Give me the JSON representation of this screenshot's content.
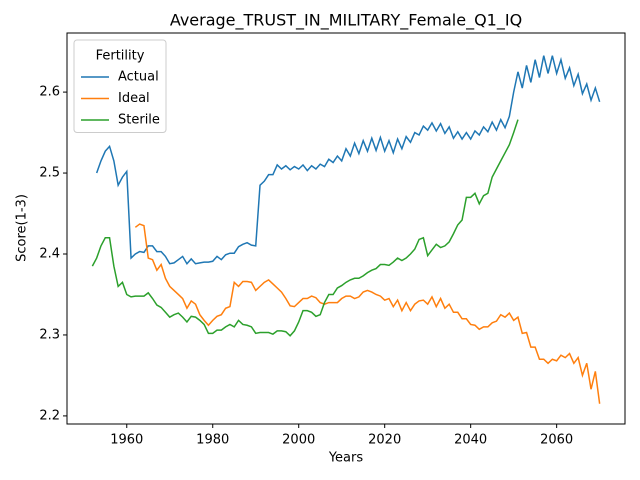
{
  "chart_data": {
    "type": "line",
    "title": "Average_TRUST_IN_MILITARY_Female_Q1_IQ",
    "x_label": "Years",
    "y_label": "Score(1-3)",
    "legend_title": "Fertility",
    "legend_position": "upper left",
    "grid": false,
    "xlim": [
      1946.1,
      2075.9
    ],
    "ylim": [
      2.19,
      2.673
    ],
    "xticks": [
      1960,
      1980,
      2000,
      2020,
      2040,
      2060
    ],
    "yticks": [
      2.2,
      2.3,
      2.4,
      2.5,
      2.6
    ],
    "x": [
      1952,
      1953,
      1954,
      1955,
      1956,
      1957,
      1958,
      1959,
      1960,
      1961,
      1962,
      1963,
      1964,
      1965,
      1966,
      1967,
      1968,
      1969,
      1970,
      1971,
      1972,
      1973,
      1974,
      1975,
      1976,
      1977,
      1978,
      1979,
      1980,
      1981,
      1982,
      1983,
      1984,
      1985,
      1986,
      1987,
      1988,
      1989,
      1990,
      1991,
      1992,
      1993,
      1994,
      1995,
      1996,
      1997,
      1998,
      1999,
      2000,
      2001,
      2002,
      2003,
      2004,
      2005,
      2006,
      2007,
      2008,
      2009,
      2010,
      2011,
      2012,
      2013,
      2014,
      2015,
      2016,
      2017,
      2018,
      2019,
      2020,
      2021,
      2022,
      2023,
      2024,
      2025,
      2026,
      2027,
      2028,
      2029,
      2030,
      2031,
      2032,
      2033,
      2034,
      2035,
      2036,
      2037,
      2038,
      2039,
      2040,
      2041,
      2042,
      2043,
      2044,
      2045,
      2046,
      2047,
      2048,
      2049,
      2050,
      2051,
      2052,
      2053,
      2054,
      2055,
      2056,
      2057,
      2058,
      2059,
      2060,
      2061,
      2062,
      2063,
      2064,
      2065,
      2066,
      2067,
      2068,
      2069,
      2070
    ],
    "series": [
      {
        "name": "Actual",
        "color": "#1f77b4",
        "values": [
          null,
          2.5,
          2.515,
          2.527,
          2.533,
          2.515,
          2.485,
          2.495,
          2.502,
          2.395,
          2.4,
          2.403,
          2.402,
          2.41,
          2.41,
          2.403,
          2.403,
          2.397,
          2.388,
          2.389,
          2.393,
          2.397,
          2.388,
          2.394,
          2.388,
          2.389,
          2.39,
          2.39,
          2.391,
          2.397,
          2.393,
          2.399,
          2.401,
          2.401,
          2.409,
          2.412,
          2.414,
          2.411,
          2.41,
          2.485,
          2.49,
          2.498,
          2.498,
          2.51,
          2.505,
          2.509,
          2.504,
          2.508,
          2.505,
          2.51,
          2.503,
          2.509,
          2.505,
          2.511,
          2.508,
          2.517,
          2.513,
          2.521,
          2.515,
          2.53,
          2.521,
          2.537,
          2.524,
          2.54,
          2.527,
          2.543,
          2.528,
          2.544,
          2.527,
          2.54,
          2.525,
          2.542,
          2.53,
          2.545,
          2.538,
          2.55,
          2.547,
          2.558,
          2.553,
          2.562,
          2.552,
          2.561,
          2.549,
          2.557,
          2.543,
          2.551,
          2.542,
          2.55,
          2.542,
          2.552,
          2.547,
          2.557,
          2.551,
          2.563,
          2.553,
          2.566,
          2.556,
          2.57,
          2.6,
          2.625,
          2.605,
          2.633,
          2.612,
          2.64,
          2.618,
          2.645,
          2.623,
          2.645,
          2.623,
          2.64,
          2.617,
          2.63,
          2.608,
          2.622,
          2.598,
          2.61,
          2.59,
          2.605,
          2.588
        ]
      },
      {
        "name": "Ideal",
        "color": "#ff7f0e",
        "values": [
          null,
          null,
          null,
          null,
          null,
          null,
          null,
          null,
          null,
          null,
          2.433,
          2.437,
          2.435,
          2.395,
          2.393,
          2.38,
          2.387,
          2.37,
          2.36,
          2.355,
          2.35,
          2.345,
          2.333,
          2.342,
          2.338,
          2.325,
          2.318,
          2.312,
          2.318,
          2.323,
          2.325,
          2.333,
          2.335,
          2.365,
          2.36,
          2.366,
          2.366,
          2.365,
          2.355,
          2.36,
          2.365,
          2.368,
          2.363,
          2.358,
          2.353,
          2.345,
          2.336,
          2.335,
          2.34,
          2.345,
          2.345,
          2.348,
          2.346,
          2.34,
          2.338,
          2.34,
          2.34,
          2.34,
          2.345,
          2.348,
          2.348,
          2.345,
          2.347,
          2.353,
          2.355,
          2.353,
          2.35,
          2.348,
          2.343,
          2.345,
          2.335,
          2.343,
          2.33,
          2.34,
          2.33,
          2.338,
          2.342,
          2.343,
          2.338,
          2.347,
          2.335,
          2.345,
          2.333,
          2.338,
          2.328,
          2.328,
          2.32,
          2.32,
          2.313,
          2.312,
          2.307,
          2.31,
          2.31,
          2.315,
          2.317,
          2.325,
          2.322,
          2.327,
          2.318,
          2.322,
          2.302,
          2.303,
          2.285,
          2.285,
          2.27,
          2.27,
          2.265,
          2.27,
          2.268,
          2.275,
          2.272,
          2.277,
          2.265,
          2.272,
          2.25,
          2.265,
          2.233,
          2.255,
          2.215
        ]
      },
      {
        "name": "Sterile",
        "color": "#2ca02c",
        "values": [
          2.385,
          2.395,
          2.41,
          2.42,
          2.42,
          2.385,
          2.36,
          2.365,
          2.35,
          2.347,
          2.348,
          2.348,
          2.348,
          2.352,
          2.345,
          2.337,
          2.334,
          2.328,
          2.322,
          2.325,
          2.327,
          2.322,
          2.316,
          2.323,
          2.322,
          2.318,
          2.313,
          2.302,
          2.302,
          2.306,
          2.306,
          2.31,
          2.313,
          2.31,
          2.318,
          2.313,
          2.312,
          2.31,
          2.302,
          2.303,
          2.303,
          2.303,
          2.301,
          2.305,
          2.305,
          2.304,
          2.299,
          2.305,
          2.316,
          2.33,
          2.33,
          2.328,
          2.323,
          2.325,
          2.34,
          2.35,
          2.35,
          2.358,
          2.361,
          2.365,
          2.368,
          2.37,
          2.37,
          2.373,
          2.377,
          2.38,
          2.382,
          2.387,
          2.387,
          2.386,
          2.39,
          2.395,
          2.392,
          2.395,
          2.4,
          2.406,
          2.418,
          2.42,
          2.398,
          2.405,
          2.412,
          2.408,
          2.41,
          2.415,
          2.425,
          2.436,
          2.442,
          2.47,
          2.47,
          2.475,
          2.462,
          2.472,
          2.475,
          2.495,
          2.505,
          2.515,
          2.525,
          2.535,
          2.55,
          2.566,
          null,
          null,
          null,
          null,
          null,
          null,
          null,
          null,
          null,
          null,
          null,
          null,
          null,
          null,
          null,
          null,
          null,
          null,
          null
        ]
      }
    ]
  }
}
